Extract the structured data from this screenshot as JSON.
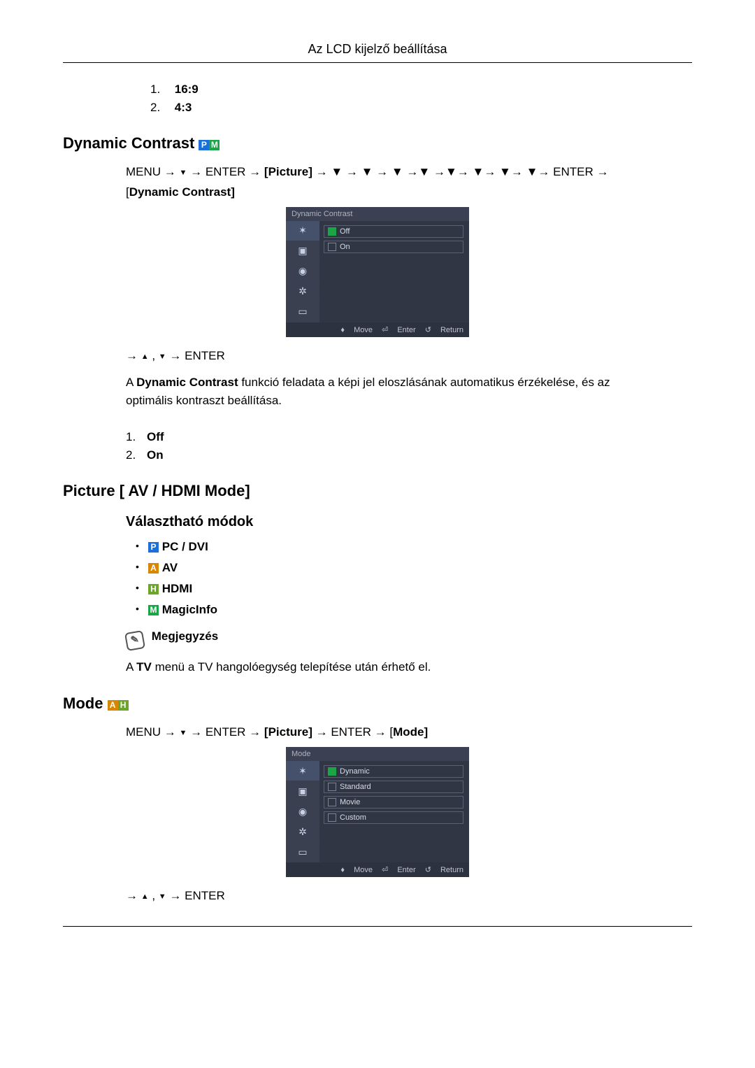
{
  "header": {
    "title": "Az LCD kijelző beállítása"
  },
  "aspect_list": [
    {
      "num": "1.",
      "label": "16:9"
    },
    {
      "num": "2.",
      "label": "4:3"
    }
  ],
  "dynamic_contrast": {
    "heading": "Dynamic Contrast",
    "badges": [
      "P",
      "M"
    ],
    "path_prefix": "MENU → ",
    "path_middle": " → ENTER → ",
    "path_picture": "[Picture]",
    "path_arrows": " → ▼ → ▼ → ▼ →▼ →▼→ ▼→ ▼→ ▼→ ENTER → [",
    "path_end_label": "Dynamic Contrast",
    "path_close": "]",
    "osd": {
      "title": "Dynamic Contrast",
      "options": [
        {
          "label": "Off",
          "checked": true
        },
        {
          "label": "On",
          "checked": false
        }
      ],
      "footer": {
        "move": "Move",
        "enter": "Enter",
        "return": "Return"
      }
    },
    "nav_line_prefix": "→ ",
    "nav_line_mid": " , ",
    "nav_line_end": " → ENTER",
    "desc_prefix": "A ",
    "desc_bold": "Dynamic Contrast",
    "desc_rest": " funkció feladata a képi jel eloszlásának automatikus érzékelése, és az optimális kontraszt beállítása.",
    "list": [
      {
        "num": "1.",
        "label": "Off"
      },
      {
        "num": "2.",
        "label": "On"
      }
    ]
  },
  "picture_av": {
    "heading": "Picture [ AV / HDMI Mode]",
    "subheading": "Választható módok",
    "modes": [
      {
        "badge": "P",
        "badge_class": "badge-p",
        "label": "PC / DVI"
      },
      {
        "badge": "A",
        "badge_class": "badge-a",
        "label": "AV"
      },
      {
        "badge": "H",
        "badge_class": "badge-h",
        "label": "HDMI"
      },
      {
        "badge": "M",
        "badge_class": "badge-m",
        "label": "MagicInfo"
      }
    ],
    "note_label": "Megjegyzés",
    "note_text_prefix": "A ",
    "note_text_bold": "TV",
    "note_text_rest": " menü a TV hangolóegység telepítése után érhető el."
  },
  "mode": {
    "heading": "Mode",
    "badges": [
      "A",
      "H"
    ],
    "path": "MENU → ▼ → ENTER → [Picture] → ENTER → [Mode]",
    "path_menu": "MENU → ",
    "path_after": " → ENTER → ",
    "path_picture": "[Picture]",
    "path_rest": " → ENTER → [",
    "path_mode": "Mode",
    "path_close": "]",
    "osd": {
      "title": "Mode",
      "options": [
        {
          "label": "Dynamic",
          "checked": true
        },
        {
          "label": "Standard",
          "checked": false
        },
        {
          "label": "Movie",
          "checked": false
        },
        {
          "label": "Custom",
          "checked": false
        }
      ],
      "footer": {
        "move": "Move",
        "enter": "Enter",
        "return": "Return"
      }
    },
    "nav_line_prefix": "→ ",
    "nav_line_mid": " , ",
    "nav_line_end": " → ENTER"
  },
  "osd_icon_glyphs": [
    "✶",
    "▣",
    "◉",
    "✲",
    "▭"
  ]
}
